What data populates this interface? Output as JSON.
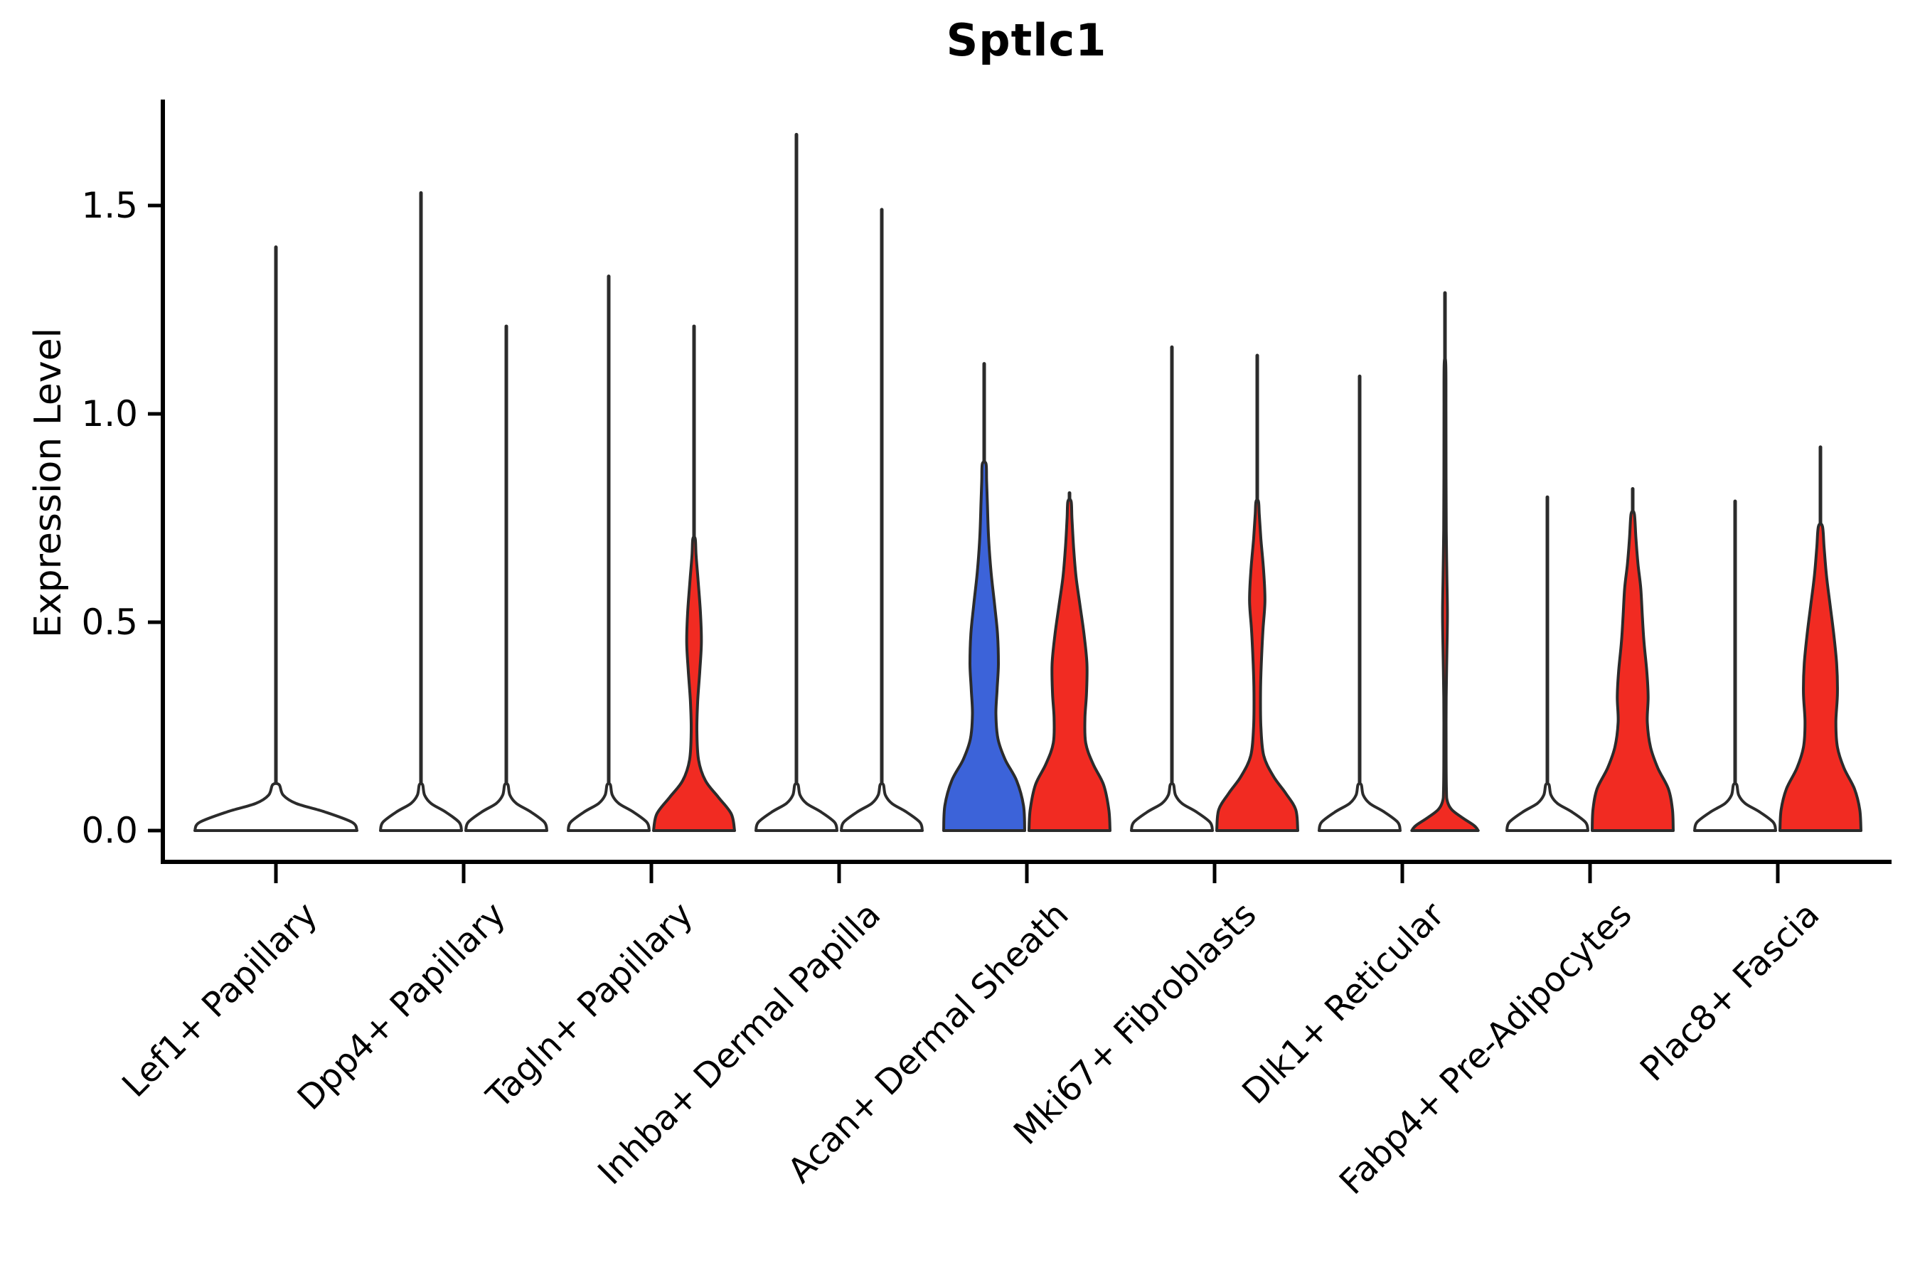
{
  "chart_data": {
    "type": "violin",
    "title": "Sptlc1",
    "ylabel": "Expression Level",
    "xlabel": "",
    "ylim": [
      -0.08,
      1.75
    ],
    "yticks": [
      {
        "value": 0.0,
        "label": "0.0"
      },
      {
        "value": 0.5,
        "label": "0.5"
      },
      {
        "value": 1.0,
        "label": "1.0"
      },
      {
        "value": 1.5,
        "label": "1.5"
      }
    ],
    "grid": false,
    "legend": "none",
    "categories": [
      "Lef1+ Papillary",
      "Dpp4+ Papillary",
      "Tagln+ Papillary",
      "Inhba+ Dermal Papilla",
      "Acan+ Dermal Sheath",
      "Mki67+ Fibroblasts",
      "Dlk1+ Reticular",
      "Fabp4+ Pre-Adipocytes",
      "Plac8+ Fascia"
    ],
    "colors": {
      "highlight_red": "#F12B22",
      "highlight_blue": "#3C63D9",
      "neutral_fill": "#FFFFFF",
      "outline": "#2b2b2b"
    },
    "violins": [
      {
        "category": "Lef1+ Papillary",
        "slot": "single",
        "fill": "#FFFFFF",
        "max_expression": 1.4,
        "width_scale": 2.0,
        "profile": [
          [
            0,
            1
          ],
          [
            0.02,
            0.94
          ],
          [
            0.045,
            0.6
          ],
          [
            0.065,
            0.25
          ],
          [
            0.085,
            0.09
          ],
          [
            0.11,
            0.04
          ]
        ]
      },
      {
        "category": "Dpp4+ Papillary",
        "slot": "left",
        "fill": "#FFFFFF",
        "max_expression": 1.53,
        "width_scale": 1.0,
        "profile": [
          [
            0,
            1
          ],
          [
            0.02,
            0.94
          ],
          [
            0.045,
            0.6
          ],
          [
            0.065,
            0.25
          ],
          [
            0.085,
            0.09
          ],
          [
            0.11,
            0.04
          ]
        ]
      },
      {
        "category": "Dpp4+ Papillary",
        "slot": "right",
        "fill": "#FFFFFF",
        "max_expression": 1.21,
        "width_scale": 1.0,
        "profile": [
          [
            0,
            1
          ],
          [
            0.02,
            0.94
          ],
          [
            0.045,
            0.6
          ],
          [
            0.065,
            0.25
          ],
          [
            0.085,
            0.09
          ],
          [
            0.11,
            0.04
          ]
        ]
      },
      {
        "category": "Tagln+ Papillary",
        "slot": "left",
        "fill": "#FFFFFF",
        "max_expression": 1.33,
        "width_scale": 1.0,
        "profile": [
          [
            0,
            1
          ],
          [
            0.02,
            0.94
          ],
          [
            0.045,
            0.6
          ],
          [
            0.065,
            0.25
          ],
          [
            0.085,
            0.09
          ],
          [
            0.11,
            0.04
          ]
        ]
      },
      {
        "category": "Tagln+ Papillary",
        "slot": "right",
        "fill": "#F12B22",
        "max_expression": 1.21,
        "width_scale": 1.0,
        "profile": [
          [
            0,
            1
          ],
          [
            0.04,
            0.92
          ],
          [
            0.08,
            0.6
          ],
          [
            0.12,
            0.28
          ],
          [
            0.17,
            0.11
          ],
          [
            0.24,
            0.07
          ],
          [
            0.31,
            0.09
          ],
          [
            0.38,
            0.14
          ],
          [
            0.45,
            0.18
          ],
          [
            0.52,
            0.16
          ],
          [
            0.6,
            0.1
          ],
          [
            0.66,
            0.05
          ],
          [
            0.7,
            0.03
          ]
        ]
      },
      {
        "category": "Inhba+ Dermal Papilla",
        "slot": "left",
        "fill": "#FFFFFF",
        "max_expression": 1.67,
        "width_scale": 1.0,
        "profile": [
          [
            0,
            1
          ],
          [
            0.02,
            0.94
          ],
          [
            0.045,
            0.6
          ],
          [
            0.065,
            0.25
          ],
          [
            0.085,
            0.09
          ],
          [
            0.11,
            0.04
          ]
        ]
      },
      {
        "category": "Inhba+ Dermal Papilla",
        "slot": "right",
        "fill": "#FFFFFF",
        "max_expression": 1.49,
        "width_scale": 1.0,
        "profile": [
          [
            0,
            1
          ],
          [
            0.02,
            0.94
          ],
          [
            0.045,
            0.6
          ],
          [
            0.065,
            0.25
          ],
          [
            0.085,
            0.09
          ],
          [
            0.11,
            0.04
          ]
        ]
      },
      {
        "category": "Acan+ Dermal Sheath",
        "slot": "left",
        "fill": "#3C63D9",
        "max_expression": 1.12,
        "width_scale": 1.0,
        "profile": [
          [
            0,
            1
          ],
          [
            0.06,
            0.97
          ],
          [
            0.12,
            0.8
          ],
          [
            0.17,
            0.52
          ],
          [
            0.22,
            0.34
          ],
          [
            0.28,
            0.29
          ],
          [
            0.34,
            0.32
          ],
          [
            0.4,
            0.35
          ],
          [
            0.47,
            0.33
          ],
          [
            0.54,
            0.26
          ],
          [
            0.62,
            0.17
          ],
          [
            0.7,
            0.11
          ],
          [
            0.78,
            0.08
          ],
          [
            0.84,
            0.06
          ],
          [
            0.88,
            0.045
          ]
        ]
      },
      {
        "category": "Acan+ Dermal Sheath",
        "slot": "right",
        "fill": "#F12B22",
        "max_expression": 0.81,
        "width_scale": 1.0,
        "profile": [
          [
            0,
            1
          ],
          [
            0.05,
            0.97
          ],
          [
            0.11,
            0.84
          ],
          [
            0.16,
            0.58
          ],
          [
            0.21,
            0.4
          ],
          [
            0.27,
            0.38
          ],
          [
            0.33,
            0.42
          ],
          [
            0.4,
            0.43
          ],
          [
            0.47,
            0.36
          ],
          [
            0.54,
            0.26
          ],
          [
            0.61,
            0.16
          ],
          [
            0.68,
            0.1
          ],
          [
            0.75,
            0.06
          ],
          [
            0.79,
            0.04
          ]
        ]
      },
      {
        "category": "Mki67+ Fibroblasts",
        "slot": "left",
        "fill": "#FFFFFF",
        "max_expression": 1.16,
        "width_scale": 1.0,
        "profile": [
          [
            0,
            1
          ],
          [
            0.02,
            0.94
          ],
          [
            0.045,
            0.6
          ],
          [
            0.065,
            0.25
          ],
          [
            0.085,
            0.09
          ],
          [
            0.11,
            0.04
          ]
        ]
      },
      {
        "category": "Mki67+ Fibroblasts",
        "slot": "right",
        "fill": "#F12B22",
        "max_expression": 1.14,
        "width_scale": 1.0,
        "profile": [
          [
            0,
            1
          ],
          [
            0.05,
            0.95
          ],
          [
            0.09,
            0.7
          ],
          [
            0.13,
            0.4
          ],
          [
            0.18,
            0.16
          ],
          [
            0.25,
            0.09
          ],
          [
            0.33,
            0.08
          ],
          [
            0.4,
            0.1
          ],
          [
            0.48,
            0.14
          ],
          [
            0.55,
            0.19
          ],
          [
            0.62,
            0.16
          ],
          [
            0.7,
            0.09
          ],
          [
            0.76,
            0.05
          ],
          [
            0.79,
            0.03
          ]
        ]
      },
      {
        "category": "Dlk1+ Reticular",
        "slot": "left",
        "fill": "#FFFFFF",
        "max_expression": 1.09,
        "width_scale": 1.0,
        "profile": [
          [
            0,
            1
          ],
          [
            0.02,
            0.94
          ],
          [
            0.045,
            0.6
          ],
          [
            0.065,
            0.25
          ],
          [
            0.085,
            0.09
          ],
          [
            0.11,
            0.04
          ]
        ]
      },
      {
        "category": "Dlk1+ Reticular",
        "slot": "right",
        "fill": "#F12B22",
        "max_expression": 1.29,
        "width_scale": 1.0,
        "profile": [
          [
            0,
            0.82
          ],
          [
            0.012,
            0.72
          ],
          [
            0.03,
            0.44
          ],
          [
            0.05,
            0.17
          ],
          [
            0.07,
            0.06
          ],
          [
            0.1,
            0.035
          ],
          [
            0.2,
            0.028
          ],
          [
            0.32,
            0.03
          ],
          [
            0.42,
            0.045
          ],
          [
            0.52,
            0.06
          ],
          [
            0.62,
            0.045
          ],
          [
            0.72,
            0.032
          ],
          [
            0.85,
            0.027
          ],
          [
            1.0,
            0.024
          ],
          [
            1.12,
            0.02
          ]
        ]
      },
      {
        "category": "Fabp4+ Pre-Adipocytes",
        "slot": "left",
        "fill": "#FFFFFF",
        "max_expression": 0.8,
        "width_scale": 1.0,
        "profile": [
          [
            0,
            1
          ],
          [
            0.02,
            0.94
          ],
          [
            0.045,
            0.6
          ],
          [
            0.065,
            0.25
          ],
          [
            0.085,
            0.09
          ],
          [
            0.11,
            0.04
          ]
        ]
      },
      {
        "category": "Fabp4+ Pre-Adipocytes",
        "slot": "right",
        "fill": "#F12B22",
        "max_expression": 0.82,
        "width_scale": 1.0,
        "profile": [
          [
            0,
            1
          ],
          [
            0.05,
            0.98
          ],
          [
            0.1,
            0.88
          ],
          [
            0.15,
            0.62
          ],
          [
            0.2,
            0.44
          ],
          [
            0.26,
            0.36
          ],
          [
            0.32,
            0.38
          ],
          [
            0.38,
            0.35
          ],
          [
            0.45,
            0.28
          ],
          [
            0.51,
            0.24
          ],
          [
            0.58,
            0.2
          ],
          [
            0.64,
            0.13
          ],
          [
            0.7,
            0.08
          ],
          [
            0.76,
            0.04
          ]
        ]
      },
      {
        "category": "Plac8+ Fascia",
        "slot": "left",
        "fill": "#FFFFFF",
        "max_expression": 0.79,
        "width_scale": 1.0,
        "profile": [
          [
            0,
            1
          ],
          [
            0.02,
            0.94
          ],
          [
            0.045,
            0.6
          ],
          [
            0.065,
            0.25
          ],
          [
            0.085,
            0.09
          ],
          [
            0.11,
            0.04
          ]
        ]
      },
      {
        "category": "Plac8+ Fascia",
        "slot": "right",
        "fill": "#F12B22",
        "max_expression": 0.92,
        "width_scale": 1.0,
        "profile": [
          [
            0,
            1
          ],
          [
            0.05,
            0.97
          ],
          [
            0.1,
            0.84
          ],
          [
            0.15,
            0.58
          ],
          [
            0.2,
            0.42
          ],
          [
            0.26,
            0.38
          ],
          [
            0.33,
            0.42
          ],
          [
            0.4,
            0.4
          ],
          [
            0.47,
            0.33
          ],
          [
            0.54,
            0.24
          ],
          [
            0.61,
            0.15
          ],
          [
            0.68,
            0.09
          ],
          [
            0.73,
            0.05
          ]
        ]
      }
    ]
  }
}
